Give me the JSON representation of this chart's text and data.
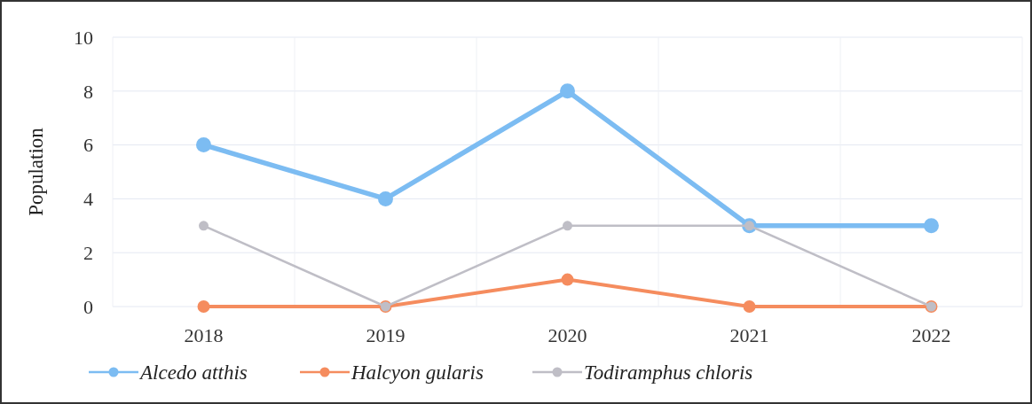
{
  "chart_data": {
    "type": "line",
    "ylabel": "Population",
    "categories": [
      "2018",
      "2019",
      "2020",
      "2021",
      "2022"
    ],
    "series": [
      {
        "name": "Alcedo atthis",
        "color": "#7cbcf2",
        "values": [
          6,
          4,
          8,
          3,
          3
        ]
      },
      {
        "name": "Halcyon gularis",
        "color": "#f58c5e",
        "values": [
          0,
          0,
          1,
          0,
          0
        ]
      },
      {
        "name": "Todiramphus chloris",
        "color": "#bfbec6",
        "values": [
          3,
          0,
          3,
          3,
          0
        ]
      }
    ],
    "ylim": [
      0,
      10
    ],
    "yticks": [
      0,
      2,
      4,
      6,
      8,
      10
    ],
    "grid": true,
    "legend": "bottom",
    "marker": "circle",
    "line_style": "solid"
  }
}
